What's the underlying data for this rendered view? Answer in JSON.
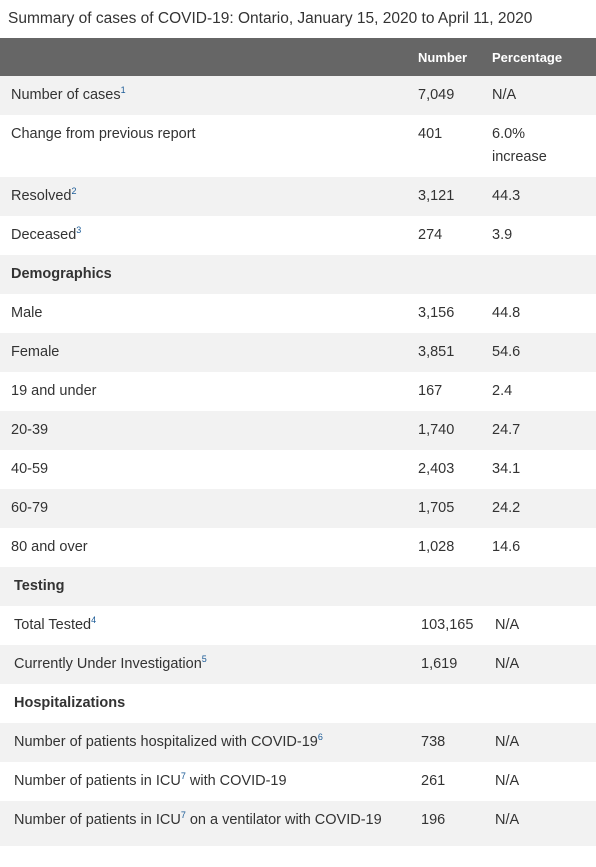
{
  "caption": "Summary of cases of COVID-19: Ontario, January 15, 2020 to April 11, 2020",
  "header": {
    "col1": "",
    "col2": "Number",
    "col3": "Percentage"
  },
  "rows": [
    {
      "label": "Number of cases",
      "sup": "1",
      "number": "7,049",
      "pct": "N/A"
    },
    {
      "label": "Change from previous report",
      "sup": "",
      "number": "401",
      "pct": "6.0% increase"
    },
    {
      "label": "Resolved",
      "sup": "2",
      "number": "3,121",
      "pct": "44.3"
    },
    {
      "label": "Deceased",
      "sup": "3",
      "number": "274",
      "pct": "3.9"
    },
    {
      "label": "Demographics",
      "section": true
    },
    {
      "label": "Male",
      "sup": "",
      "number": "3,156",
      "pct": "44.8"
    },
    {
      "label": "Female",
      "sup": "",
      "number": "3,851",
      "pct": "54.6"
    },
    {
      "label": "19 and under",
      "sup": "",
      "number": "167",
      "pct": "2.4"
    },
    {
      "label": "20-39",
      "sup": "",
      "number": "1,740",
      "pct": "24.7"
    },
    {
      "label": "40-59",
      "sup": "",
      "number": "2,403",
      "pct": "34.1"
    },
    {
      "label": "60-79",
      "sup": "",
      "number": "1,705",
      "pct": "24.2"
    },
    {
      "label": "80 and over",
      "sup": "",
      "number": "1,028",
      "pct": "14.6"
    },
    {
      "label": "Testing",
      "section": true,
      "sec2": true
    },
    {
      "label": "Total Tested",
      "sup": "4",
      "number": "103,165",
      "pct": "N/A",
      "sec2": true
    },
    {
      "label": "Currently Under Investigation",
      "sup": "5",
      "number": "1,619",
      "pct": "N/A",
      "sec2": true
    },
    {
      "label": "Hospitalizations",
      "section": true,
      "sec2": true
    },
    {
      "label": "Number of patients hospitalized with COVID-19",
      "sup": "6",
      "number": "738",
      "pct": "N/A",
      "sec2": true
    },
    {
      "label": "Number of patients in ICU",
      "sup": "7",
      "label2": " with COVID-19",
      "number": "261",
      "pct": "N/A",
      "sec2": true
    },
    {
      "label": "Number of patients in ICU",
      "sup": "7",
      "label2": " on a ventilator with COVID-19",
      "number": "196",
      "pct": "N/A",
      "sec2": true
    }
  ]
}
